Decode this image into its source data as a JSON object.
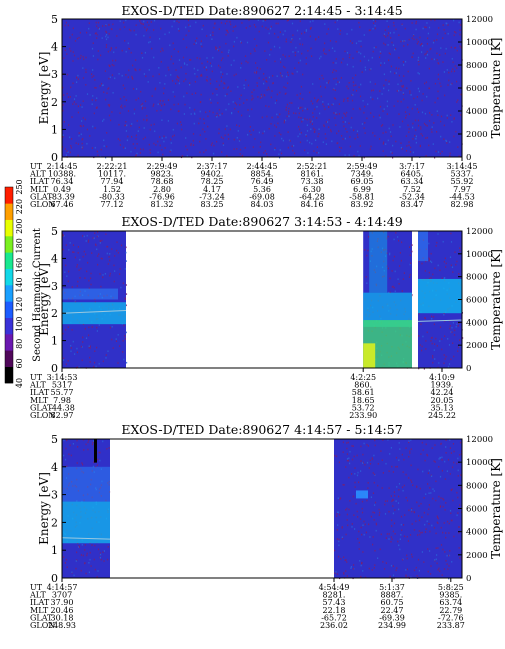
{
  "chart_data": [
    {
      "type": "heatmap",
      "title": "EXOS-D/TED   Date:890627  2:14:45 - 3:14:45",
      "ylabel": "Energy [eV]",
      "y2label": "Temperature [K]",
      "ylim": [
        0,
        5
      ],
      "y2lim": [
        0,
        12000
      ],
      "yticks": [
        "0",
        "1",
        "2",
        "3",
        "4",
        "5"
      ],
      "y2ticks": [
        "0",
        "2000",
        "4000",
        "6000",
        "8000",
        "10000",
        "12000"
      ],
      "data_segments": [
        [
          0,
          1
        ]
      ],
      "background_color": "#3030c8",
      "ephemeris": {
        "row_labels": [
          "UT",
          "ALT",
          "ILAT",
          "MLT",
          "GLAT",
          "GLON"
        ],
        "columns": [
          {
            "x": 0.0,
            "values": [
              "2:14:45",
              "10388.",
              "76.34",
              "0.49",
              "-83.39",
              "67.46"
            ]
          },
          {
            "x": 0.125,
            "values": [
              "2:22:21",
              "10117.",
              "77.94",
              "1.52",
              "-80.33",
              "77.12"
            ]
          },
          {
            "x": 0.25,
            "values": [
              "2:29:49",
              "9823.",
              "78.68",
              "2.80",
              "-76.96",
              "81.32"
            ]
          },
          {
            "x": 0.375,
            "values": [
              "2:37:17",
              "9402.",
              "78.25",
              "4.17",
              "-73.24",
              "83.25"
            ]
          },
          {
            "x": 0.5,
            "values": [
              "2:44:45",
              "8854.",
              "76.49",
              "5.36",
              "-69.08",
              "84.03"
            ]
          },
          {
            "x": 0.625,
            "values": [
              "2:52:21",
              "8161.",
              "73.38",
              "6.30",
              "-64.28",
              "84.16"
            ]
          },
          {
            "x": 0.75,
            "values": [
              "2:59:49",
              "7349.",
              "69.05",
              "6.99",
              "-58.81",
              "83.92"
            ]
          },
          {
            "x": 0.875,
            "values": [
              "3:7:17",
              "6405.",
              "63.34",
              "7.52",
              "-52.34",
              "83.47"
            ]
          },
          {
            "x": 1.0,
            "values": [
              "3:14:45",
              "5337.",
              "55.92",
              "7.97",
              "-44.53",
              "82.98"
            ]
          }
        ]
      }
    },
    {
      "type": "heatmap",
      "title": "EXOS-D/TED   Date:890627  3:14:53 - 4:14:49",
      "ylabel": "Energy [eV]",
      "y2label": "Temperature [K]",
      "ylim": [
        0,
        5
      ],
      "y2lim": [
        0,
        12000
      ],
      "yticks": [
        "0",
        "1",
        "2",
        "3",
        "4",
        "5"
      ],
      "y2ticks": [
        "0",
        "2000",
        "4000",
        "6000",
        "8000",
        "10000",
        "12000"
      ],
      "data_segments": [
        [
          0,
          0.16
        ],
        [
          0.753,
          0.875
        ],
        [
          0.89,
          1
        ]
      ],
      "ephemeris": {
        "row_labels": [
          "UT",
          "ALT",
          "ILAT",
          "MLT",
          "GLAT",
          "GLON"
        ],
        "columns": [
          {
            "x": 0.0,
            "values": [
              "3:14:53",
              "5317",
              "55.77",
              "7.98",
              "-44.38",
              "82.97"
            ]
          },
          {
            "x": 0.753,
            "values": [
              "4:2:25",
              "860.",
              "58.61",
              "18.65",
              "53.72",
              "233.90"
            ]
          },
          {
            "x": 0.95,
            "values": [
              "4:10:9",
              "1939.",
              "42.24",
              "20.05",
              "35.13",
              "245.22"
            ]
          }
        ]
      }
    },
    {
      "type": "heatmap",
      "title": "EXOS-D/TED   Date:890627  4:14:57 - 5:14:57",
      "ylabel": "Energy [eV]",
      "y2label": "Temperature [K]",
      "ylim": [
        0,
        5
      ],
      "y2lim": [
        0,
        12000
      ],
      "yticks": [
        "0",
        "1",
        "2",
        "3",
        "4",
        "5"
      ],
      "y2ticks": [
        "0",
        "2000",
        "4000",
        "6000",
        "8000",
        "10000",
        "12000"
      ],
      "data_segments": [
        [
          0,
          0.12
        ],
        [
          0.68,
          1
        ]
      ],
      "ephemeris": {
        "row_labels": [
          "UT",
          "ALT",
          "ILAT",
          "MLT",
          "GLAT",
          "GLON"
        ],
        "columns": [
          {
            "x": 0.0,
            "values": [
              "4:14:57",
              "3707",
              "37.90",
              "20.46",
              "30.18",
              "248.93"
            ]
          },
          {
            "x": 0.68,
            "values": [
              "4:54:49",
              "8281.",
              "57.43",
              "22.18",
              "-65.72",
              "236.02"
            ]
          },
          {
            "x": 0.825,
            "values": [
              "5:1:37",
              "8887.",
              "60.75",
              "22.47",
              "-69.39",
              "234.99"
            ]
          },
          {
            "x": 0.972,
            "values": [
              "5:8:25",
              "9385.",
              "63.74",
              "22.79",
              "-72.76",
              "233.87"
            ]
          }
        ]
      }
    }
  ],
  "colorbar": {
    "label": "Second Harmonic Current",
    "ticks": [
      "40",
      "60",
      "80",
      "100",
      "120",
      "140",
      "160",
      "180",
      "200",
      "220",
      "250"
    ],
    "colors": [
      "#000000",
      "#50085a",
      "#6a18b0",
      "#3a32d8",
      "#1c5cff",
      "#1aa0ff",
      "#12d8e8",
      "#18e890",
      "#7af020",
      "#e8ff00",
      "#ffa000",
      "#ff1e00"
    ]
  },
  "colors": {
    "background": "#3030c8",
    "speckle": "#7a2070",
    "speckle_alt": "#2a60d8",
    "band_cyan": "#10b8f0",
    "band_light": "#2a90ff",
    "band_green": "#40e070",
    "band_yellow": "#d8f020"
  }
}
